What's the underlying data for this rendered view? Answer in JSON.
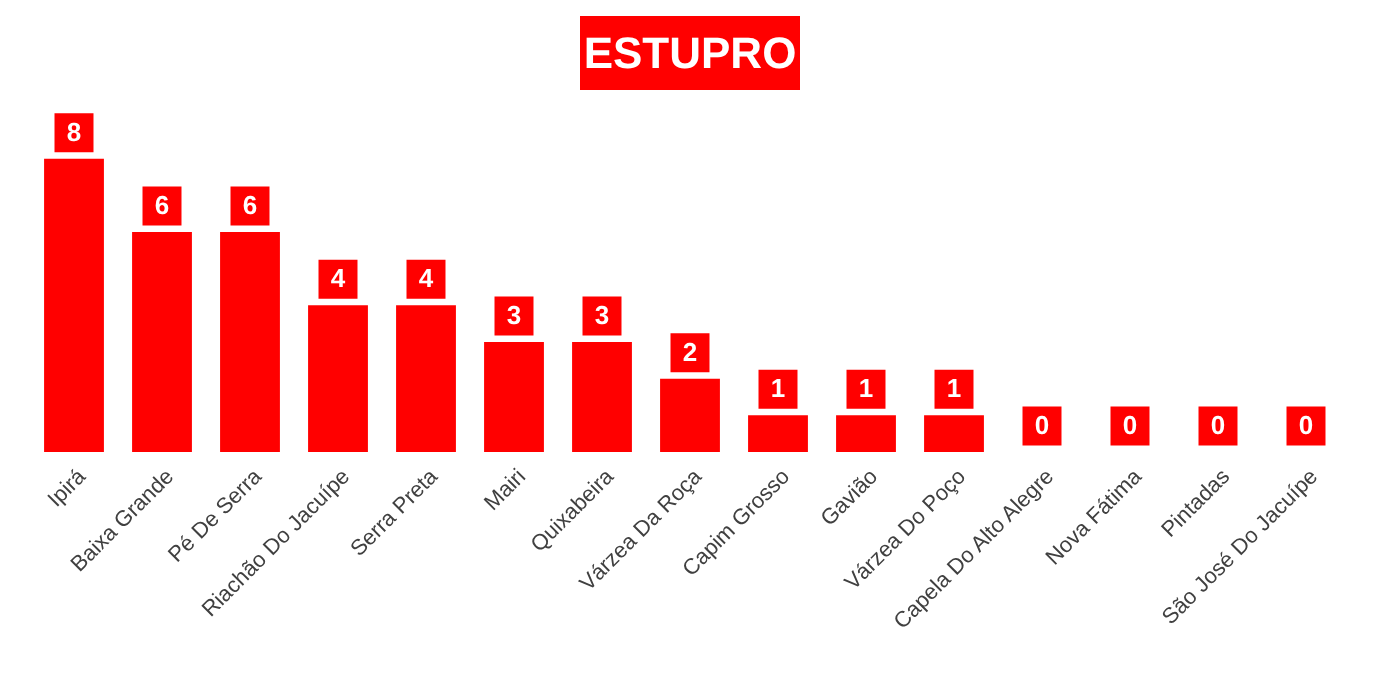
{
  "chart_data": {
    "type": "bar",
    "title": "ESTUPRO",
    "categories": [
      "Ipirá",
      "Baixa Grande",
      "Pé De Serra",
      "Riachão Do Jacuípe",
      "Serra Preta",
      "Mairi",
      "Quixabeira",
      "Várzea Da Roça",
      "Capim Grosso",
      "Gavião",
      "Várzea Do Poço",
      "Capela Do Alto Alegre",
      "Nova Fátima",
      "Pintadas",
      "São José Do Jacuípe"
    ],
    "values": [
      8,
      6,
      6,
      4,
      4,
      3,
      3,
      2,
      1,
      1,
      1,
      0,
      0,
      0,
      0
    ],
    "color": "#ff0000",
    "data_labels": true,
    "grid": false
  }
}
